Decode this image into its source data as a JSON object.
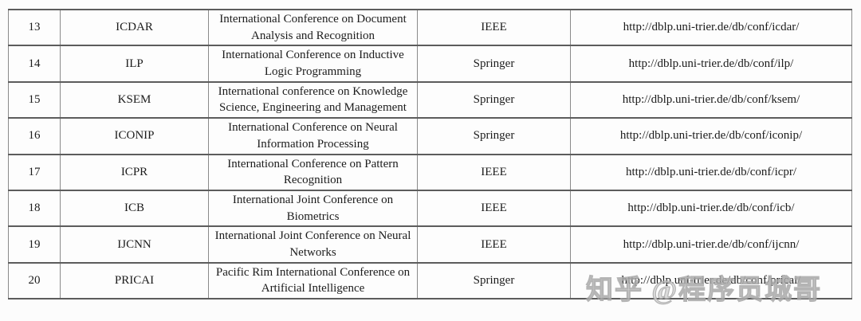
{
  "colors": {
    "background": "#fcfcfc",
    "border_horizontal": "#5c5c5c",
    "border_vertical": "#8a8a8a",
    "text": "#1c1c1c",
    "watermark": "#bdbdbd"
  },
  "table": {
    "columns": [
      "index",
      "acronym",
      "full_name",
      "publisher",
      "dblp_url"
    ],
    "rows": [
      {
        "num": "13",
        "acronym": "ICDAR",
        "name": "International Conference on Document Analysis and Recognition",
        "publisher": "IEEE",
        "url": "http://dblp.uni-trier.de/db/conf/icdar/"
      },
      {
        "num": "14",
        "acronym": "ILP",
        "name": "International Conference on Inductive Logic Programming",
        "publisher": "Springer",
        "url": "http://dblp.uni-trier.de/db/conf/ilp/"
      },
      {
        "num": "15",
        "acronym": "KSEM",
        "name": "International conference on Knowledge Science, Engineering and Management",
        "publisher": "Springer",
        "url": "http://dblp.uni-trier.de/db/conf/ksem/"
      },
      {
        "num": "16",
        "acronym": "ICONIP",
        "name": "International Conference on Neural Information Processing",
        "publisher": "Springer",
        "url": "http://dblp.uni-trier.de/db/conf/iconip/"
      },
      {
        "num": "17",
        "acronym": "ICPR",
        "name": "International Conference on Pattern Recognition",
        "publisher": "IEEE",
        "url": "http://dblp.uni-trier.de/db/conf/icpr/"
      },
      {
        "num": "18",
        "acronym": "ICB",
        "name": "International Joint Conference on Biometrics",
        "publisher": "IEEE",
        "url": "http://dblp.uni-trier.de/db/conf/icb/"
      },
      {
        "num": "19",
        "acronym": "IJCNN",
        "name": "International Joint Conference on Neural Networks",
        "publisher": "IEEE",
        "url": "http://dblp.uni-trier.de/db/conf/ijcnn/"
      },
      {
        "num": "20",
        "acronym": "PRICAI",
        "name": "Pacific Rim International Conference on Artificial Intelligence",
        "publisher": "Springer",
        "url": "http://dblp.uni-trier.de/db/conf/pricai/"
      }
    ]
  },
  "watermark": {
    "text": "知乎 @程序员城哥"
  }
}
